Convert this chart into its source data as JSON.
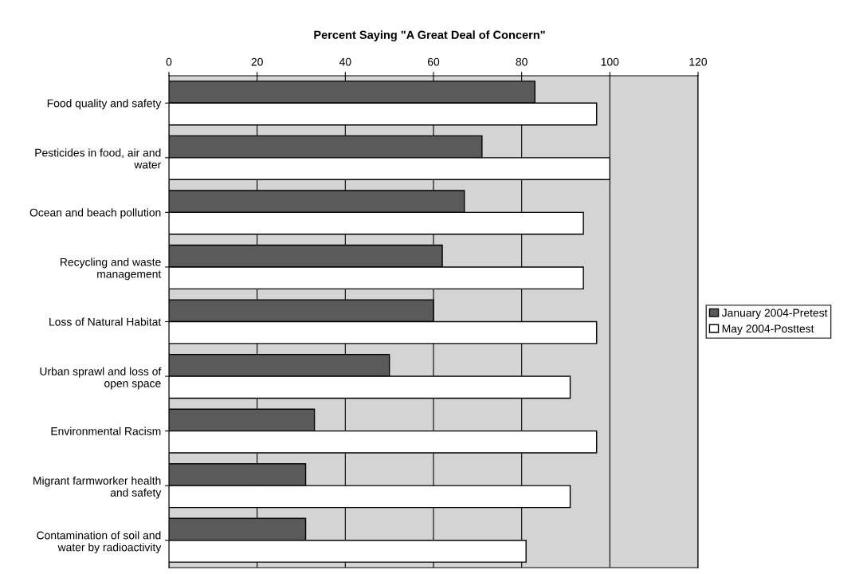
{
  "chart_data": {
    "type": "bar",
    "orientation": "horizontal",
    "title": "Percent Saying \"A Great Deal of Concern\"",
    "categories": [
      "Food quality and safety",
      "Pesticides in food, air and\nwater",
      "Ocean and beach pollution",
      "Recycling and waste\nmanagement",
      "Loss of Natural Habitat",
      "Urban sprawl and loss of\nopen space",
      "Environmental Racism",
      "Migrant farmworker health\nand safety",
      "Contamination of soil and\nwater by radioactivity"
    ],
    "series": [
      {
        "name": "January 2004-Pretest",
        "color": "#5a5a5a",
        "values": [
          83,
          71,
          67,
          62,
          60,
          50,
          33,
          31,
          31
        ]
      },
      {
        "name": "May 2004-Posttest",
        "color": "#ffffff",
        "values": [
          97,
          100,
          94,
          94,
          97,
          91,
          97,
          91,
          81
        ]
      }
    ],
    "xlim": [
      0,
      120
    ],
    "xticks": [
      0,
      20,
      40,
      60,
      80,
      100,
      120
    ],
    "grid": "x",
    "legend": "right"
  }
}
